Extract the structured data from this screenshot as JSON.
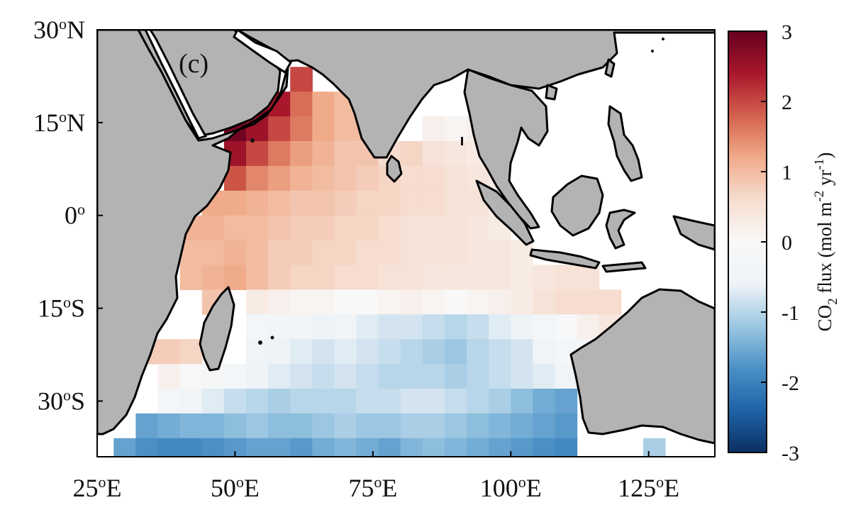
{
  "panel_label": "(c)",
  "axes": {
    "x_ticks": [
      {
        "value": 25,
        "num": "25",
        "sup": "o",
        "hem": "E"
      },
      {
        "value": 50,
        "num": "50",
        "sup": "o",
        "hem": "E"
      },
      {
        "value": 75,
        "num": "75",
        "sup": "o",
        "hem": "E"
      },
      {
        "value": 100,
        "num": "100",
        "sup": "o",
        "hem": "E"
      },
      {
        "value": 125,
        "num": "125",
        "sup": "o",
        "hem": "E"
      }
    ],
    "y_ticks": [
      {
        "value": 30,
        "num": "30",
        "sup": "o",
        "hem": "N"
      },
      {
        "value": 15,
        "num": "15",
        "sup": "o",
        "hem": "N"
      },
      {
        "value": 0,
        "num": "0",
        "sup": "o",
        "hem": ""
      },
      {
        "value": -15,
        "num": "15",
        "sup": "o",
        "hem": "S"
      },
      {
        "value": -30,
        "num": "30",
        "sup": "o",
        "hem": "S"
      }
    ],
    "lon_range": [
      25,
      137
    ],
    "lat_range": [
      -39,
      30
    ]
  },
  "colorbar": {
    "ticks": [
      "3",
      "2",
      "1",
      "0",
      "-1",
      "-2",
      "-3"
    ],
    "range": [
      -3,
      3
    ],
    "label": {
      "a": "CO",
      "sub1": "2",
      "b": " flux (mol m",
      "sup1": "-2",
      "c": " yr",
      "sup2": "-1",
      "d": ")"
    },
    "stops": [
      "#0b2f63",
      "#1f63a8",
      "#4a90c6",
      "#9cc7e2",
      "#eef3f7",
      "#f8f8f8",
      "#f6ddd0",
      "#f0ab8a",
      "#d3614e",
      "#a8172b",
      "#67001f"
    ]
  },
  "colors": {
    "land": "#b3b3b3",
    "coast": "#000000",
    "ocean_nodata": "#ffffff"
  },
  "chart_data": {
    "type": "heatmap",
    "title": "",
    "xlabel": "",
    "ylabel": "",
    "colorbar_label": "CO2 flux (mol m-2 yr-1)",
    "xlim": [
      25,
      137
    ],
    "ylim": [
      -39,
      30
    ],
    "clim": [
      -3,
      3
    ],
    "grid": false,
    "cell_size_deg": 4,
    "lon_centers": [
      30,
      34,
      38,
      42,
      46,
      50,
      54,
      58,
      62,
      66,
      70,
      74,
      78,
      82,
      86,
      90,
      94,
      98,
      102,
      106,
      110,
      114,
      118,
      122,
      126
    ],
    "lat_centers": [
      22,
      18,
      14,
      10,
      6,
      2,
      -2,
      -6,
      -10,
      -14,
      -18,
      -22,
      -26,
      -30,
      -34,
      -38
    ],
    "values": [
      [
        null,
        null,
        null,
        null,
        null,
        null,
        null,
        null,
        2.0,
        null,
        null,
        null,
        null,
        null,
        null,
        null,
        null,
        null,
        null,
        null,
        null,
        null,
        null,
        null,
        null
      ],
      [
        null,
        null,
        null,
        null,
        null,
        null,
        2.8,
        2.4,
        1.7,
        1.2,
        1.0,
        null,
        null,
        null,
        null,
        null,
        null,
        null,
        null,
        null,
        null,
        null,
        null,
        null,
        null
      ],
      [
        null,
        null,
        null,
        null,
        null,
        2.9,
        2.5,
        2.0,
        1.6,
        1.2,
        1.0,
        1.0,
        null,
        null,
        0.2,
        0.1,
        0.2,
        null,
        null,
        null,
        null,
        null,
        null,
        null,
        null
      ],
      [
        null,
        null,
        null,
        null,
        null,
        2.5,
        2.0,
        1.6,
        1.3,
        1.1,
        0.9,
        0.9,
        0.6,
        0.7,
        0.5,
        0.4,
        0.3,
        null,
        null,
        null,
        null,
        null,
        null,
        null,
        null
      ],
      [
        null,
        null,
        null,
        null,
        null,
        1.9,
        1.5,
        1.3,
        1.1,
        1.0,
        0.9,
        0.8,
        0.7,
        0.6,
        0.6,
        0.5,
        0.4,
        0.3,
        null,
        null,
        null,
        null,
        null,
        null,
        null
      ],
      [
        null,
        null,
        null,
        null,
        1.2,
        1.2,
        1.1,
        1.0,
        0.9,
        0.9,
        0.8,
        0.7,
        0.7,
        0.6,
        0.6,
        0.5,
        0.5,
        0.3,
        null,
        null,
        null,
        null,
        null,
        null,
        null
      ],
      [
        null,
        null,
        null,
        1.1,
        1.1,
        1.0,
        1.0,
        0.9,
        0.8,
        0.8,
        0.7,
        0.7,
        0.6,
        0.5,
        0.5,
        0.5,
        0.4,
        0.3,
        null,
        null,
        null,
        null,
        null,
        null,
        null
      ],
      [
        null,
        null,
        null,
        1.0,
        1.0,
        1.1,
        1.0,
        0.8,
        0.8,
        0.7,
        0.7,
        0.6,
        0.6,
        0.5,
        0.5,
        0.5,
        0.4,
        0.4,
        0.3,
        null,
        null,
        null,
        null,
        null,
        null
      ],
      [
        null,
        null,
        null,
        1.0,
        1.1,
        1.2,
        1.0,
        0.8,
        0.7,
        0.7,
        0.6,
        0.6,
        0.5,
        0.5,
        0.4,
        0.4,
        0.4,
        0.4,
        0.3,
        0.4,
        0.5,
        0.5,
        null,
        null,
        null
      ],
      [
        null,
        null,
        null,
        null,
        0.9,
        null,
        0.3,
        0.2,
        0.1,
        0.1,
        0.0,
        0.0,
        0.1,
        0.2,
        0.1,
        0.0,
        0.1,
        0.2,
        0.3,
        0.5,
        0.6,
        0.6,
        0.6,
        null,
        null
      ],
      [
        null,
        null,
        null,
        null,
        null,
        null,
        -0.3,
        -0.4,
        -0.5,
        -0.6,
        -0.5,
        -0.7,
        -0.8,
        -0.8,
        -0.9,
        -1.0,
        -0.9,
        -0.7,
        -0.6,
        -0.3,
        -0.1,
        0.2,
        0.4,
        null,
        null
      ],
      [
        null,
        0.8,
        0.8,
        0.7,
        null,
        null,
        -0.5,
        -0.6,
        -0.7,
        -0.8,
        -0.7,
        -0.8,
        -0.9,
        -1.0,
        -1.1,
        -1.2,
        -1.0,
        -0.9,
        -0.8,
        -0.5,
        -0.3,
        -0.1,
        null,
        null,
        null
      ],
      [
        null,
        null,
        0.2,
        0.0,
        -0.2,
        -0.3,
        -0.6,
        -0.7,
        -0.8,
        -0.9,
        -0.8,
        -0.9,
        -1.0,
        -1.0,
        -1.0,
        -1.1,
        -1.0,
        -0.9,
        -0.8,
        -0.7,
        -0.5,
        -0.4,
        null,
        null,
        null
      ],
      [
        null,
        null,
        -0.3,
        -0.5,
        -0.7,
        -0.9,
        -1.0,
        -1.1,
        -1.0,
        -1.0,
        -1.0,
        -0.9,
        -0.9,
        -0.8,
        -0.8,
        -0.9,
        -1.0,
        -1.1,
        -1.3,
        -1.5,
        -1.6,
        null,
        null,
        null,
        null
      ],
      [
        null,
        -1.6,
        -1.5,
        -1.4,
        -1.4,
        -1.3,
        -1.2,
        -1.3,
        -1.3,
        -1.2,
        -1.1,
        -1.2,
        -1.2,
        -1.1,
        -1.1,
        -1.2,
        -1.3,
        -1.4,
        -1.5,
        -1.6,
        -1.7,
        null,
        null,
        null,
        null
      ],
      [
        -1.6,
        -1.8,
        -1.9,
        -1.9,
        -1.8,
        -1.7,
        -1.6,
        -1.6,
        -1.7,
        -1.5,
        -1.4,
        -1.5,
        -1.6,
        -1.4,
        -1.3,
        -1.4,
        -1.5,
        -1.6,
        -1.7,
        -1.8,
        -1.9,
        null,
        null,
        null,
        -1.1
      ]
    ]
  }
}
